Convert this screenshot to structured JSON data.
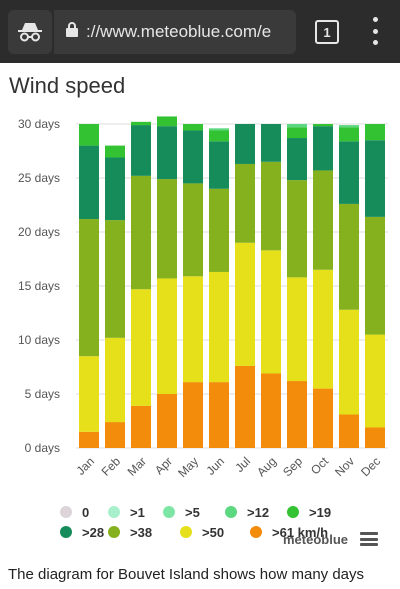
{
  "browser": {
    "url": "://www.meteoblue.com/e",
    "tab_count": "1"
  },
  "page": {
    "title": "Wind speed",
    "brand": "meteoblue",
    "description": "The diagram for Bouvet Island shows how many days"
  },
  "legend": [
    {
      "label": "0",
      "color": "#dcd4d8"
    },
    {
      "label": ">1",
      "color": "#a8f0cc"
    },
    {
      "label": ">5",
      "color": "#7ee6a4"
    },
    {
      "label": ">12",
      "color": "#5cd880"
    },
    {
      "label": ">19",
      "color": "#32c232"
    },
    {
      "label": ">28",
      "color": "#168c5a"
    },
    {
      "label": ">38",
      "color": "#86b11e"
    },
    {
      "label": ">50",
      "color": "#e6e01a"
    },
    {
      "label": ">61 km/h",
      "color": "#f28c0a"
    }
  ],
  "chart_data": {
    "type": "bar",
    "stacked": true,
    "categories": [
      "Jan",
      "Feb",
      "Mar",
      "Apr",
      "May",
      "Jun",
      "Jul",
      "Aug",
      "Sep",
      "Oct",
      "Nov",
      "Dec"
    ],
    "y_ticks": [
      "0 days",
      "5 days",
      "10 days",
      "15 days",
      "20 days",
      "25 days",
      "30 days"
    ],
    "ylim": [
      0,
      30
    ],
    "grid": true,
    "series": [
      {
        "name": ">61 km/h",
        "color": "#f28c0a",
        "values": [
          1.5,
          2.4,
          3.9,
          5.0,
          6.1,
          6.1,
          7.6,
          6.9,
          6.2,
          5.5,
          3.1,
          1.9
        ]
      },
      {
        "name": ">50",
        "color": "#e6e01a",
        "values": [
          7.0,
          7.8,
          10.8,
          10.7,
          9.8,
          10.2,
          11.4,
          11.4,
          9.6,
          11.0,
          9.7,
          8.6
        ]
      },
      {
        "name": ">38",
        "color": "#86b11e",
        "values": [
          12.7,
          10.9,
          10.5,
          9.2,
          8.6,
          7.7,
          7.3,
          8.2,
          9.0,
          9.2,
          9.8,
          10.9
        ]
      },
      {
        "name": ">28",
        "color": "#168c5a",
        "values": [
          6.8,
          5.8,
          4.7,
          4.9,
          4.9,
          4.4,
          3.7,
          3.5,
          3.9,
          4.1,
          5.8,
          7.1
        ]
      },
      {
        "name": ">19",
        "color": "#32c232",
        "values": [
          2.0,
          1.1,
          0.3,
          0.9,
          0.6,
          1.0,
          0.0,
          0.0,
          1.0,
          0.2,
          1.3,
          1.5
        ]
      },
      {
        "name": ">12",
        "color": "#5cd880",
        "values": [
          0,
          0,
          0,
          0,
          0,
          0.2,
          0,
          0,
          0.3,
          0,
          0.2,
          0
        ]
      }
    ]
  }
}
